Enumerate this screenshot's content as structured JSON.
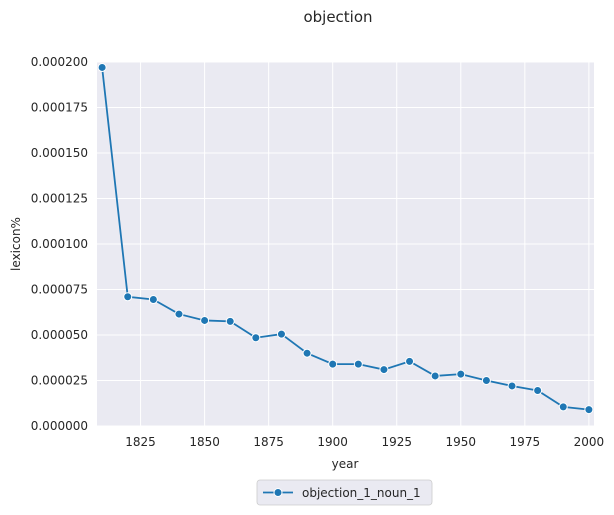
{
  "chart_data": {
    "type": "line",
    "title": "objection",
    "xlabel": "year",
    "ylabel": "lexicon%",
    "xlim": [
      1808,
      2002
    ],
    "ylim": [
      0,
      0.0002
    ],
    "x_ticks": [
      1825,
      1850,
      1875,
      1900,
      1925,
      1950,
      1975,
      2000
    ],
    "x_tick_labels": [
      "1825",
      "1850",
      "1875",
      "1900",
      "1925",
      "1950",
      "1975",
      "2000"
    ],
    "y_ticks": [
      0,
      2.5e-05,
      5e-05,
      7.5e-05,
      0.0001,
      0.000125,
      0.00015,
      0.000175,
      0.0002
    ],
    "y_tick_labels": [
      "0.000000",
      "0.000025",
      "0.000050",
      "0.000075",
      "0.000100",
      "0.000125",
      "0.000150",
      "0.000175",
      "0.000200"
    ],
    "grid": true,
    "legend_position": "bottom-center",
    "colors": {
      "series": "#1f77b4",
      "plot_bg": "#eaeaf2",
      "grid": "#ffffff"
    },
    "series": [
      {
        "name": "objection_1_noun_1",
        "x": [
          1810,
          1820,
          1830,
          1840,
          1850,
          1860,
          1870,
          1880,
          1890,
          1900,
          1910,
          1920,
          1930,
          1940,
          1950,
          1960,
          1970,
          1980,
          1990,
          2000
        ],
        "y": [
          0.000197,
          7.1e-05,
          6.95e-05,
          6.15e-05,
          5.8e-05,
          5.75e-05,
          4.85e-05,
          5.05e-05,
          4e-05,
          3.4e-05,
          3.4e-05,
          3.1e-05,
          3.55e-05,
          2.75e-05,
          2.85e-05,
          2.5e-05,
          2.2e-05,
          1.95e-05,
          1.05e-05,
          9e-06
        ]
      }
    ]
  }
}
